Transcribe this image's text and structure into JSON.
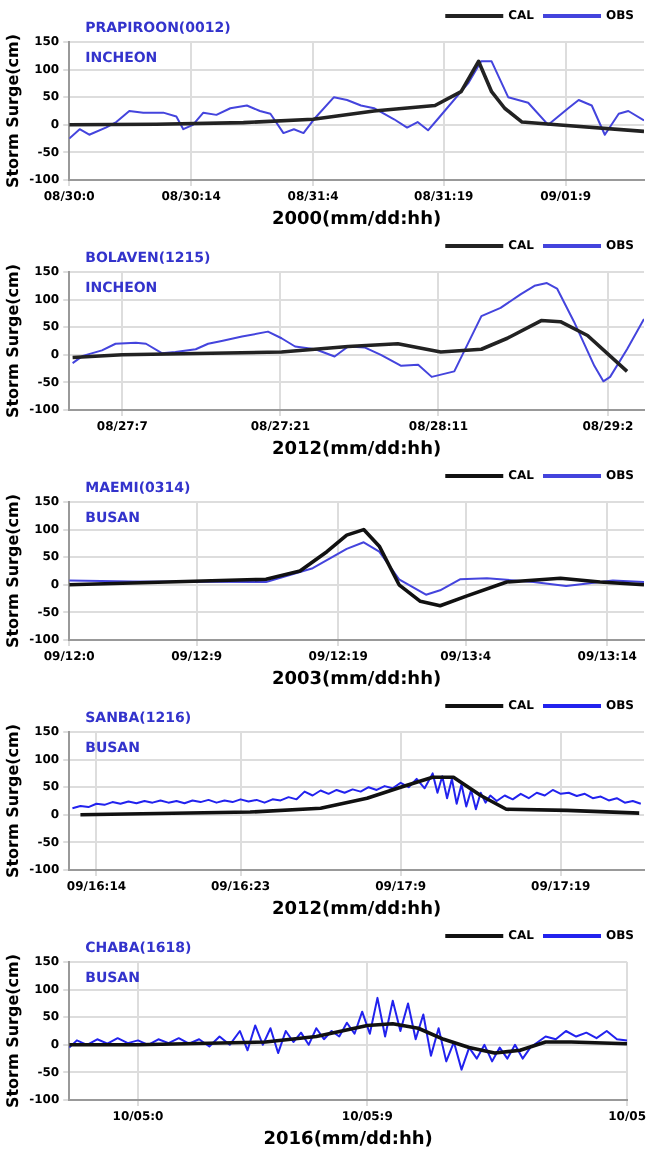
{
  "chart_data": [
    {
      "type": "line",
      "title": "PRAPIROON(0012)",
      "subtitle": "INCHEON",
      "xlabel": "2000(mm/dd:hh)",
      "ylabel": "Storm Surge(cm)",
      "xlim": [
        "2000-08-30T00:00",
        "2000-09-01T18:00"
      ],
      "ylim": [
        -100,
        150
      ],
      "xticks": [
        {
          "value": "2000-08-30T00:00",
          "label": "08/30:0"
        },
        {
          "value": "2000-08-30T14:00",
          "label": "08/30:14"
        },
        {
          "value": "2000-08-31T04:00",
          "label": "08/31:4"
        },
        {
          "value": "2000-08-31T19:00",
          "label": "08/31:19"
        },
        {
          "value": "2000-09-01T09:00",
          "label": "09/01:9"
        }
      ],
      "yticks": [
        -100,
        -50,
        0,
        50,
        100,
        150
      ],
      "grid": true,
      "legend": "top right",
      "series": [
        {
          "name": "CAL",
          "color": "#222222",
          "x": [
            "2000-08-30T00:00",
            "2000-08-30T10:00",
            "2000-08-30T20:00",
            "2000-08-31T04:00",
            "2000-08-31T11:00",
            "2000-08-31T18:00",
            "2000-08-31T21:00",
            "2000-08-31T23:00",
            "2000-09-01T00:30",
            "2000-09-01T02:00",
            "2000-09-01T04:00",
            "2000-09-01T08:00",
            "2000-09-01T18:00"
          ],
          "values": [
            0,
            1,
            4,
            10,
            25,
            35,
            60,
            115,
            60,
            30,
            5,
            0,
            -12
          ]
        },
        {
          "name": "OBS",
          "color": "#4444dd",
          "x": [
            "2000-08-30T00:00",
            "2000-08-30T01:12",
            "2000-08-30T02:18",
            "2000-08-30T04:12",
            "2000-08-30T05:24",
            "2000-08-30T06:54",
            "2000-08-30T08:30",
            "2000-08-30T10:48",
            "2000-08-30T12:18",
            "2000-08-30T13:06",
            "2000-08-30T14:12",
            "2000-08-30T15:24",
            "2000-08-30T16:54",
            "2000-08-30T18:30",
            "2000-08-30T20:24",
            "2000-08-30T21:54",
            "2000-08-30T23:06",
            "2000-08-31T00:36",
            "2000-08-31T01:48",
            "2000-08-31T02:54",
            "2000-08-31T04:06",
            "2000-08-31T06:24",
            "2000-08-31T07:54",
            "2000-08-31T09:30",
            "2000-08-31T11:00",
            "2000-08-31T13:18",
            "2000-08-31T14:48",
            "2000-08-31T16:00",
            "2000-08-31T17:12",
            "2000-08-31T18:18",
            "2000-08-31T21:48",
            "2000-08-31T23:18",
            "2000-09-01T00:30",
            "2000-09-01T02:24",
            "2000-09-01T04:42",
            "2000-09-01T07:00",
            "2000-09-01T09:18",
            "2000-09-01T10:30",
            "2000-09-01T12:00",
            "2000-09-01T13:30",
            "2000-09-01T15:06",
            "2000-09-01T16:12",
            "2000-09-01T18:00"
          ],
          "values": [
            -25,
            -8,
            -18,
            -5,
            5,
            25,
            22,
            22,
            15,
            -8,
            0,
            22,
            18,
            30,
            35,
            25,
            20,
            -15,
            -8,
            -15,
            10,
            50,
            45,
            35,
            30,
            10,
            -5,
            5,
            -10,
            10,
            75,
            115,
            115,
            50,
            40,
            0,
            30,
            45,
            35,
            -18,
            20,
            25,
            8
          ]
        }
      ]
    },
    {
      "type": "line",
      "title": "BOLAVEN(1215)",
      "subtitle": "INCHEON",
      "xlabel": "2012(mm/dd:hh)",
      "ylabel": "Storm Surge(cm)",
      "xlim": [
        "2012-08-27T02:18",
        "2012-08-29T05:12"
      ],
      "ylim": [
        -100,
        150
      ],
      "xticks": [
        {
          "value": "2012-08-27T07:00",
          "label": "08/27:7"
        },
        {
          "value": "2012-08-27T21:00",
          "label": "08/27:21"
        },
        {
          "value": "2012-08-28T11:00",
          "label": "08/28:11"
        },
        {
          "value": "2012-08-29T02:00",
          "label": "08/29:2"
        }
      ],
      "yticks": [
        -100,
        -50,
        0,
        50,
        100,
        150
      ],
      "grid": true,
      "legend": "top right",
      "series": [
        {
          "name": "CAL",
          "color": "#222222",
          "x": [
            "2012-08-27T02:36",
            "2012-08-27T07:00",
            "2012-08-27T21:06",
            "2012-08-28T03:00",
            "2012-08-28T07:24",
            "2012-08-28T11:12",
            "2012-08-28T14:48",
            "2012-08-28T17:06",
            "2012-08-28T20:06",
            "2012-08-28T21:48",
            "2012-08-29T00:12",
            "2012-08-29T03:42"
          ],
          "values": [
            -5,
            0,
            5,
            15,
            20,
            5,
            10,
            30,
            62,
            60,
            35,
            -30
          ]
        },
        {
          "name": "OBS",
          "color": "#4444dd",
          "x": [
            "2012-08-27T02:36",
            "2012-08-27T03:30",
            "2012-08-27T05:12",
            "2012-08-27T06:24",
            "2012-08-27T08:12",
            "2012-08-27T09:06",
            "2012-08-27T10:30",
            "2012-08-27T11:42",
            "2012-08-27T13:30",
            "2012-08-27T14:36",
            "2012-08-27T15:48",
            "2012-08-27T17:36",
            "2012-08-27T19:54",
            "2012-08-27T21:06",
            "2012-08-27T22:18",
            "2012-08-28T00:06",
            "2012-08-28T01:48",
            "2012-08-28T03:00",
            "2012-08-28T04:30",
            "2012-08-28T05:54",
            "2012-08-28T07:42",
            "2012-08-28T09:12",
            "2012-08-28T10:24",
            "2012-08-28T12:24",
            "2012-08-28T14:48",
            "2012-08-28T16:30",
            "2012-08-28T18:18",
            "2012-08-28T19:30",
            "2012-08-28T20:36",
            "2012-08-28T21:30",
            "2012-08-28T23:00",
            "2012-08-29T00:48",
            "2012-08-29T01:36",
            "2012-08-29T02:12",
            "2012-08-29T03:42",
            "2012-08-29T05:12"
          ],
          "values": [
            -15,
            -2,
            8,
            20,
            22,
            20,
            3,
            5,
            10,
            20,
            25,
            33,
            42,
            30,
            15,
            10,
            -3,
            15,
            13,
            0,
            -20,
            -18,
            -40,
            -30,
            70,
            85,
            110,
            125,
            130,
            120,
            60,
            -20,
            -48,
            -40,
            10,
            65
          ]
        }
      ]
    },
    {
      "type": "line",
      "title": "MAEMI(0314)",
      "subtitle": "BUSAN",
      "xlabel": "2003(mm/dd:hh)",
      "ylabel": "Storm Surge(cm)",
      "xlim": [
        "2003-09-12T00:00",
        "2003-09-13T16:36"
      ],
      "ylim": [
        -100,
        150
      ],
      "xticks": [
        {
          "value": "2003-09-12T00:00",
          "label": "09/12:0"
        },
        {
          "value": "2003-09-12T09:00",
          "label": "09/12:9"
        },
        {
          "value": "2003-09-12T19:00",
          "label": "09/12:19"
        },
        {
          "value": "2003-09-13T04:00",
          "label": "09/13:4"
        },
        {
          "value": "2003-09-13T14:00",
          "label": "09/13:14"
        }
      ],
      "yticks": [
        -100,
        -50,
        0,
        50,
        100,
        150
      ],
      "grid": true,
      "legend": "top right",
      "series": [
        {
          "name": "CAL",
          "color": "#111111",
          "x": [
            "2003-09-12T00:00",
            "2003-09-12T13:54",
            "2003-09-12T16:18",
            "2003-09-12T18:12",
            "2003-09-12T19:36",
            "2003-09-12T20:48",
            "2003-09-12T21:54",
            "2003-09-12T23:18",
            "2003-09-13T00:48",
            "2003-09-13T02:12",
            "2003-09-13T04:06",
            "2003-09-13T06:54",
            "2003-09-13T10:42",
            "2003-09-13T13:30",
            "2003-09-13T16:36"
          ],
          "values": [
            0,
            10,
            25,
            60,
            90,
            100,
            70,
            0,
            -30,
            -38,
            -20,
            5,
            12,
            5,
            0
          ]
        },
        {
          "name": "OBS",
          "color": "#4444dd",
          "x": [
            "2003-09-12T00:00",
            "2003-09-12T04:30",
            "2003-09-12T13:54",
            "2003-09-12T17:12",
            "2003-09-12T19:36",
            "2003-09-12T20:48",
            "2003-09-12T21:54",
            "2003-09-12T23:18",
            "2003-09-13T01:12",
            "2003-09-13T02:12",
            "2003-09-13T03:36",
            "2003-09-13T05:30",
            "2003-09-13T08:48",
            "2003-09-13T11:06",
            "2003-09-13T14:24",
            "2003-09-13T16:36"
          ],
          "values": [
            8,
            6,
            5,
            30,
            65,
            77,
            60,
            10,
            -18,
            -10,
            10,
            12,
            5,
            -2,
            8,
            5
          ]
        }
      ]
    },
    {
      "type": "line",
      "title": "SANBA(1216)",
      "subtitle": "BUSAN",
      "xlabel": "2012(mm/dd:hh)",
      "ylabel": "Storm Surge(cm)",
      "xlim": [
        "2012-09-16T12:18",
        "2012-09-18T00:12"
      ],
      "ylim": [
        -100,
        150
      ],
      "xticks": [
        {
          "value": "2012-09-16T14:00",
          "label": "09/16:14"
        },
        {
          "value": "2012-09-16T23:00",
          "label": "09/16:23"
        },
        {
          "value": "2012-09-17T09:00",
          "label": "09/17:9"
        },
        {
          "value": "2012-09-17T19:00",
          "label": "09/17:19"
        }
      ],
      "yticks": [
        -100,
        -50,
        0,
        50,
        100,
        150
      ],
      "grid": true,
      "legend": "top right",
      "series": [
        {
          "name": "CAL",
          "color": "#111111",
          "x": [
            "2012-09-16T13:00",
            "2012-09-16T23:36",
            "2012-09-17T04:00",
            "2012-09-17T06:54",
            "2012-09-17T09:00",
            "2012-09-17T11:00",
            "2012-09-17T12:18",
            "2012-09-17T14:00",
            "2012-09-17T15:36",
            "2012-09-17T19:24",
            "2012-09-17T23:54"
          ],
          "values": [
            0,
            5,
            12,
            30,
            50,
            68,
            68,
            35,
            10,
            8,
            3
          ]
        },
        {
          "name": "OBS",
          "color": "#2222ee",
          "x": [
            "2012-09-16T12:30",
            "2012-09-16T13:00",
            "2012-09-16T13:30",
            "2012-09-16T14:00",
            "2012-09-16T14:30",
            "2012-09-16T15:00",
            "2012-09-16T15:30",
            "2012-09-16T16:00",
            "2012-09-16T16:30",
            "2012-09-16T17:00",
            "2012-09-16T17:30",
            "2012-09-16T18:00",
            "2012-09-16T18:30",
            "2012-09-16T19:00",
            "2012-09-16T19:30",
            "2012-09-16T20:00",
            "2012-09-16T20:30",
            "2012-09-16T21:00",
            "2012-09-16T21:30",
            "2012-09-16T22:00",
            "2012-09-16T22:30",
            "2012-09-16T23:00",
            "2012-09-16T23:30",
            "2012-09-17T00:00",
            "2012-09-17T00:30",
            "2012-09-17T01:00",
            "2012-09-17T01:30",
            "2012-09-17T02:00",
            "2012-09-17T02:30",
            "2012-09-17T03:00",
            "2012-09-17T03:30",
            "2012-09-17T04:00",
            "2012-09-17T04:30",
            "2012-09-17T05:00",
            "2012-09-17T05:30",
            "2012-09-17T06:00",
            "2012-09-17T06:30",
            "2012-09-17T07:00",
            "2012-09-17T07:30",
            "2012-09-17T08:00",
            "2012-09-17T08:30",
            "2012-09-17T09:00",
            "2012-09-17T09:30",
            "2012-09-17T10:00",
            "2012-09-17T10:30",
            "2012-09-17T11:00",
            "2012-09-17T11:18",
            "2012-09-17T11:36",
            "2012-09-17T11:54",
            "2012-09-17T12:12",
            "2012-09-17T12:30",
            "2012-09-17T12:48",
            "2012-09-17T13:06",
            "2012-09-17T13:24",
            "2012-09-17T13:42",
            "2012-09-17T14:00",
            "2012-09-17T14:18",
            "2012-09-17T14:36",
            "2012-09-17T15:00",
            "2012-09-17T15:30",
            "2012-09-17T16:00",
            "2012-09-17T16:30",
            "2012-09-17T17:00",
            "2012-09-17T17:30",
            "2012-09-17T18:00",
            "2012-09-17T18:30",
            "2012-09-17T19:00",
            "2012-09-17T19:30",
            "2012-09-17T20:00",
            "2012-09-17T20:30",
            "2012-09-17T21:00",
            "2012-09-17T21:30",
            "2012-09-17T22:00",
            "2012-09-17T22:30",
            "2012-09-17T23:00",
            "2012-09-17T23:30",
            "2012-09-18T00:00"
          ],
          "values": [
            12,
            16,
            14,
            20,
            18,
            23,
            20,
            24,
            21,
            25,
            22,
            26,
            22,
            25,
            21,
            26,
            23,
            27,
            22,
            26,
            23,
            28,
            24,
            27,
            22,
            28,
            26,
            32,
            28,
            42,
            35,
            44,
            38,
            45,
            40,
            46,
            42,
            50,
            45,
            52,
            48,
            58,
            50,
            65,
            48,
            75,
            40,
            70,
            30,
            65,
            20,
            55,
            15,
            45,
            10,
            40,
            22,
            35,
            25,
            35,
            28,
            38,
            30,
            40,
            35,
            45,
            38,
            40,
            34,
            38,
            30,
            33,
            26,
            30,
            22,
            25,
            20
          ]
        }
      ]
    },
    {
      "type": "line",
      "title": "CHABA(1618)",
      "subtitle": "BUSAN",
      "xlabel": "2016(mm/dd:hh)",
      "ylabel": "Storm Surge(cm)",
      "xlim": [
        "2016-10-04T21:18",
        "2016-10-05T19:12"
      ],
      "ylim": [
        -100,
        150
      ],
      "xticks": [
        {
          "value": "2016-10-05T00:00",
          "label": "10/05:0"
        },
        {
          "value": "2016-10-05T09:00",
          "label": "10/05:9"
        },
        {
          "value": "2016-10-05T19:12",
          "label": "10/05"
        }
      ],
      "yticks": [
        -100,
        -50,
        0,
        50,
        100,
        150
      ],
      "grid": true,
      "legend": "top right",
      "series": [
        {
          "name": "CAL",
          "color": "#111111",
          "x": [
            "2016-10-04T21:18",
            "2016-10-05T00:00",
            "2016-10-05T05:00",
            "2016-10-05T07:00",
            "2016-10-05T09:00",
            "2016-10-05T10:00",
            "2016-10-05T11:00",
            "2016-10-05T12:00",
            "2016-10-05T13:00",
            "2016-10-05T14:00",
            "2016-10-05T15:00",
            "2016-10-05T16:00",
            "2016-10-05T17:00",
            "2016-10-05T19:12"
          ],
          "values": [
            0,
            0,
            5,
            15,
            35,
            38,
            30,
            10,
            -5,
            -15,
            -10,
            5,
            5,
            2
          ]
        },
        {
          "name": "OBS",
          "color": "#2222ee",
          "x": [
            "2016-10-04T21:18",
            "2016-10-04T21:36",
            "2016-10-04T22:00",
            "2016-10-04T22:24",
            "2016-10-04T22:48",
            "2016-10-04T23:12",
            "2016-10-04T23:36",
            "2016-10-05T00:00",
            "2016-10-05T00:24",
            "2016-10-05T00:48",
            "2016-10-05T01:12",
            "2016-10-05T01:36",
            "2016-10-05T02:00",
            "2016-10-05T02:24",
            "2016-10-05T02:48",
            "2016-10-05T03:12",
            "2016-10-05T03:36",
            "2016-10-05T04:00",
            "2016-10-05T04:18",
            "2016-10-05T04:36",
            "2016-10-05T04:54",
            "2016-10-05T05:12",
            "2016-10-05T05:30",
            "2016-10-05T05:48",
            "2016-10-05T06:06",
            "2016-10-05T06:24",
            "2016-10-05T06:42",
            "2016-10-05T07:00",
            "2016-10-05T07:18",
            "2016-10-05T07:36",
            "2016-10-05T07:54",
            "2016-10-05T08:12",
            "2016-10-05T08:30",
            "2016-10-05T08:48",
            "2016-10-05T09:06",
            "2016-10-05T09:24",
            "2016-10-05T09:42",
            "2016-10-05T10:00",
            "2016-10-05T10:18",
            "2016-10-05T10:36",
            "2016-10-05T10:54",
            "2016-10-05T11:12",
            "2016-10-05T11:30",
            "2016-10-05T11:48",
            "2016-10-05T12:06",
            "2016-10-05T12:24",
            "2016-10-05T12:42",
            "2016-10-05T13:00",
            "2016-10-05T13:18",
            "2016-10-05T13:36",
            "2016-10-05T13:54",
            "2016-10-05T14:12",
            "2016-10-05T14:30",
            "2016-10-05T14:48",
            "2016-10-05T15:06",
            "2016-10-05T15:24",
            "2016-10-05T15:42",
            "2016-10-05T16:00",
            "2016-10-05T16:24",
            "2016-10-05T16:48",
            "2016-10-05T17:12",
            "2016-10-05T17:36",
            "2016-10-05T18:00",
            "2016-10-05T18:24",
            "2016-10-05T18:48",
            "2016-10-05T19:12"
          ],
          "values": [
            -5,
            8,
            0,
            10,
            2,
            12,
            3,
            8,
            0,
            10,
            3,
            12,
            2,
            10,
            -3,
            15,
            0,
            25,
            -10,
            35,
            0,
            30,
            -15,
            25,
            5,
            22,
            0,
            30,
            10,
            25,
            15,
            40,
            20,
            60,
            20,
            85,
            15,
            80,
            25,
            75,
            10,
            55,
            -20,
            30,
            -30,
            5,
            -45,
            -5,
            -25,
            0,
            -30,
            -5,
            -25,
            0,
            -25,
            -5,
            5,
            15,
            10,
            25,
            15,
            22,
            12,
            25,
            10,
            8
          ]
        }
      ]
    }
  ]
}
